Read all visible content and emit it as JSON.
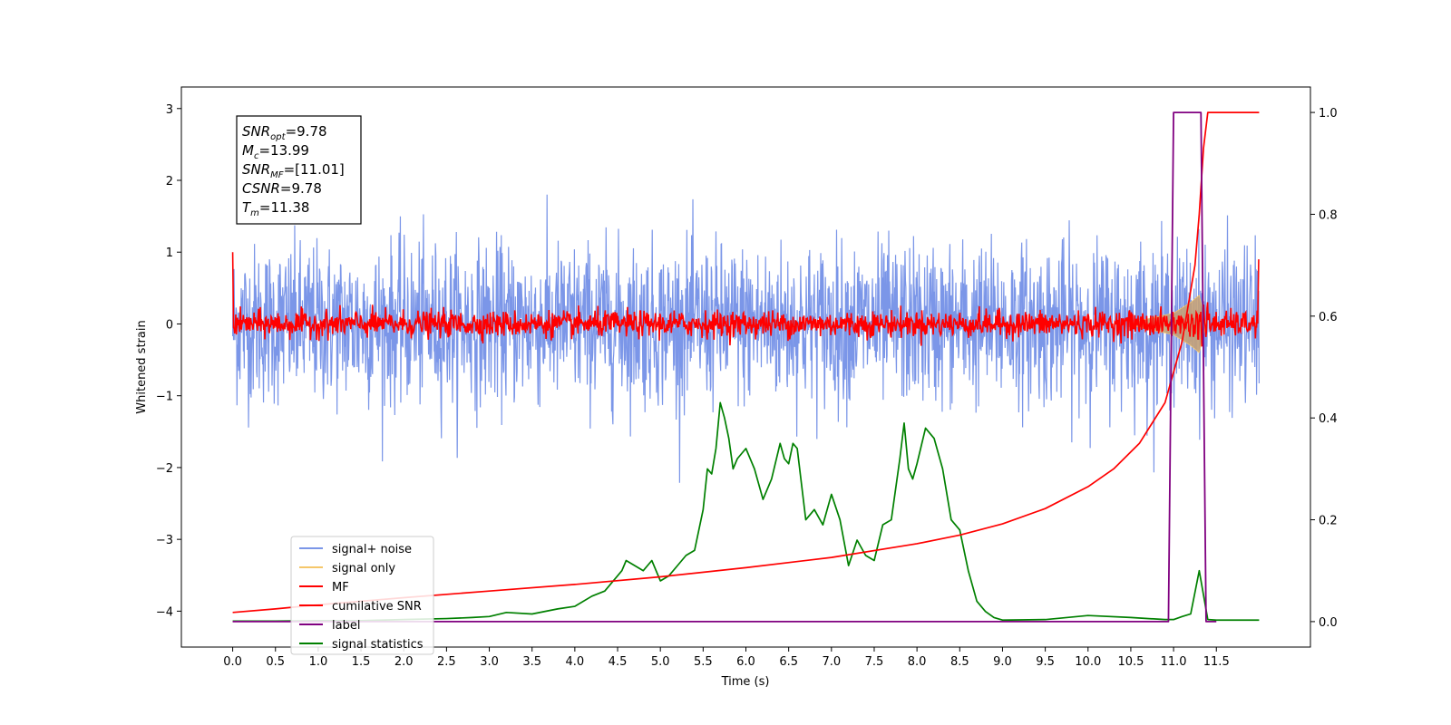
{
  "chart_data": {
    "type": "line",
    "xlabel": "Time (s)",
    "ylabel": "Whitened strain",
    "xlim": [
      -0.6,
      12.6
    ],
    "ylim": [
      -4.5,
      3.3
    ],
    "y2lim": [
      -0.05,
      1.05
    ],
    "x_ticks": [
      "0.0",
      "0.5",
      "1.0",
      "1.5",
      "2.0",
      "2.5",
      "3.0",
      "3.5",
      "4.0",
      "4.5",
      "5.0",
      "5.5",
      "6.0",
      "6.5",
      "7.0",
      "7.5",
      "8.0",
      "8.5",
      "9.0",
      "9.5",
      "10.0",
      "10.5",
      "11.0",
      "11.5"
    ],
    "y_ticks": [
      "3",
      "2",
      "1",
      "0",
      "−1",
      "−2",
      "−3",
      "−4"
    ],
    "y2_ticks": [
      "1.0",
      "0.8",
      "0.6",
      "0.4",
      "0.2",
      "0.0"
    ],
    "stats_box": [
      {
        "base": "SNR",
        "sub": "opt",
        "value": "=9.78"
      },
      {
        "base": "M",
        "sub": "c",
        "value": "=13.99"
      },
      {
        "base": "SNR",
        "sub": "MF",
        "value": "=[11.01]"
      },
      {
        "base": "CSNR",
        "sub": "",
        "value": "=9.78"
      },
      {
        "base": "T",
        "sub": "m",
        "value": "=11.38"
      }
    ],
    "legend_position": "lower-left",
    "series": [
      {
        "name": "signal+ noise",
        "color": "#7b96e8",
        "axis": "left",
        "noise_std": 0.55,
        "x_range": [
          0,
          12
        ]
      },
      {
        "name": "signal only",
        "color": "#f5c76a",
        "axis": "left",
        "envelope": [
          [
            10.5,
            0.02
          ],
          [
            11.0,
            0.15
          ],
          [
            11.2,
            0.3
          ],
          [
            11.3,
            0.4
          ],
          [
            11.38,
            0.0
          ]
        ]
      },
      {
        "name": "MF",
        "color": "#ff0000",
        "axis": "left",
        "noise_std": 0.09,
        "x_range": [
          0,
          12
        ]
      },
      {
        "name": "cumilative SNR",
        "color": "#ff0000",
        "axis": "right",
        "x": [
          0.0,
          0.5,
          1.0,
          2.0,
          3.0,
          4.0,
          5.0,
          6.0,
          7.0,
          8.0,
          8.5,
          9.0,
          9.5,
          10.0,
          10.3,
          10.6,
          10.9,
          11.1,
          11.25,
          11.3,
          11.35,
          11.4,
          12.0
        ],
        "y": [
          0.018,
          0.025,
          0.033,
          0.047,
          0.06,
          0.073,
          0.088,
          0.106,
          0.126,
          0.153,
          0.17,
          0.192,
          0.222,
          0.265,
          0.3,
          0.35,
          0.43,
          0.55,
          0.7,
          0.8,
          0.93,
          1.0,
          1.0
        ]
      },
      {
        "name": "label",
        "color": "#800080",
        "axis": "right",
        "x": [
          0.0,
          10.94,
          11.0,
          11.32,
          11.38,
          11.5
        ],
        "y": [
          0.0,
          0.0,
          1.0,
          1.0,
          0.0,
          0.0
        ]
      },
      {
        "name": "signal statistics",
        "color": "#008000",
        "axis": "right",
        "x": [
          0.0,
          0.5,
          1.0,
          1.5,
          2.0,
          2.5,
          2.8,
          3.0,
          3.2,
          3.5,
          3.8,
          4.0,
          4.2,
          4.35,
          4.45,
          4.55,
          4.6,
          4.7,
          4.8,
          4.9,
          5.0,
          5.1,
          5.2,
          5.3,
          5.4,
          5.5,
          5.55,
          5.6,
          5.65,
          5.7,
          5.75,
          5.8,
          5.85,
          5.9,
          6.0,
          6.1,
          6.2,
          6.3,
          6.4,
          6.45,
          6.5,
          6.55,
          6.6,
          6.7,
          6.8,
          6.9,
          7.0,
          7.1,
          7.2,
          7.3,
          7.4,
          7.5,
          7.6,
          7.7,
          7.8,
          7.85,
          7.9,
          7.95,
          8.0,
          8.1,
          8.2,
          8.3,
          8.4,
          8.5,
          8.6,
          8.7,
          8.8,
          8.9,
          9.0,
          9.5,
          10.0,
          10.5,
          10.9,
          11.0,
          11.1,
          11.2,
          11.3,
          11.4,
          11.5,
          12.0
        ],
        "y": [
          0.001,
          0.001,
          0.002,
          0.002,
          0.004,
          0.006,
          0.008,
          0.01,
          0.018,
          0.015,
          0.025,
          0.03,
          0.05,
          0.06,
          0.08,
          0.1,
          0.12,
          0.11,
          0.1,
          0.12,
          0.08,
          0.09,
          0.11,
          0.13,
          0.14,
          0.22,
          0.3,
          0.29,
          0.34,
          0.43,
          0.4,
          0.36,
          0.3,
          0.32,
          0.34,
          0.3,
          0.24,
          0.28,
          0.35,
          0.32,
          0.31,
          0.35,
          0.34,
          0.2,
          0.22,
          0.19,
          0.25,
          0.2,
          0.11,
          0.16,
          0.13,
          0.12,
          0.19,
          0.2,
          0.32,
          0.39,
          0.3,
          0.28,
          0.31,
          0.38,
          0.36,
          0.3,
          0.2,
          0.18,
          0.1,
          0.04,
          0.02,
          0.008,
          0.003,
          0.004,
          0.012,
          0.008,
          0.004,
          0.004,
          0.01,
          0.015,
          0.1,
          0.004,
          0.003,
          0.003
        ]
      }
    ]
  }
}
